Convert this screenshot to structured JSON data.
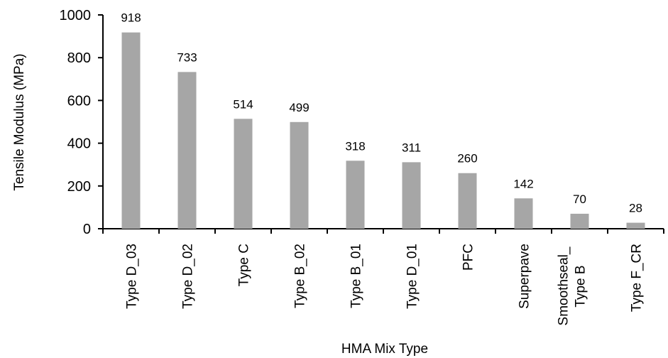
{
  "chart_data": {
    "type": "bar",
    "xlabel": "HMA Mix Type",
    "ylabel": "Tensile Modulus (MPa)",
    "ylim": [
      0,
      1000
    ],
    "yticks": [
      0,
      200,
      400,
      600,
      800,
      1000
    ],
    "grid": false,
    "legend": "none",
    "bar_color": "#a6a6a6",
    "categories": [
      [
        "Type D_03"
      ],
      [
        "Type D_02"
      ],
      [
        "Type C"
      ],
      [
        "Type B_02"
      ],
      [
        "Type B_01"
      ],
      [
        "Type D_01"
      ],
      [
        "PFC"
      ],
      [
        "Superpave"
      ],
      [
        "Smoothseal_",
        "Type B"
      ],
      [
        "Type F_CR"
      ]
    ],
    "values": [
      918,
      733,
      514,
      499,
      318,
      311,
      260,
      142,
      70,
      28
    ]
  }
}
